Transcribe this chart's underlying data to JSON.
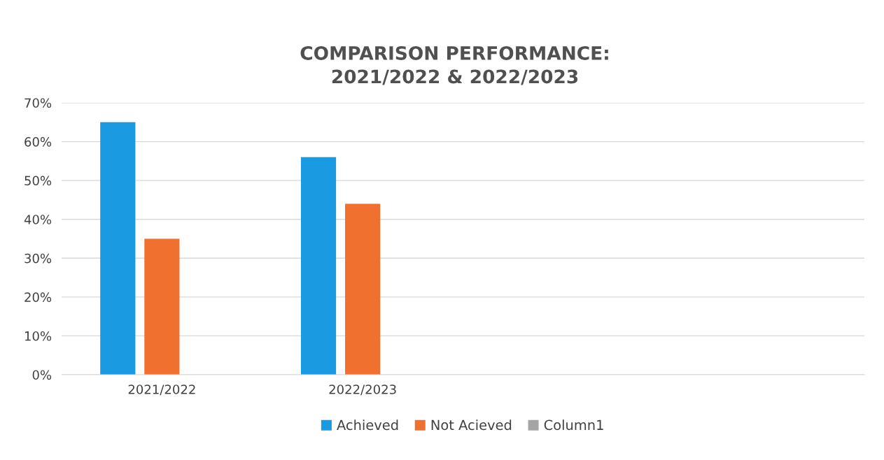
{
  "chart_data": {
    "type": "bar",
    "title": "COMPARISON PERFORMANCE:\n2021/2022 & 2022/2023",
    "categories": [
      "2021/2022",
      "2022/2023",
      null,
      null
    ],
    "series": [
      {
        "name": "Achieved",
        "color": "#1a9ae0",
        "values": [
          65,
          56,
          null,
          null
        ]
      },
      {
        "name": "Not Acieved",
        "color": "#f07030",
        "values": [
          35,
          44,
          null,
          null
        ]
      },
      {
        "name": "Column1",
        "color": "#a5a5a5",
        "values": [
          null,
          null,
          null,
          null
        ]
      }
    ],
    "ylim": [
      0,
      70
    ],
    "yticks": [
      {
        "value": 0,
        "label": "0%"
      },
      {
        "value": 10,
        "label": "10%"
      },
      {
        "value": 20,
        "label": "20%"
      },
      {
        "value": 30,
        "label": "30%"
      },
      {
        "value": 40,
        "label": "40%"
      },
      {
        "value": 50,
        "label": "50%"
      },
      {
        "value": 60,
        "label": "60%"
      },
      {
        "value": 70,
        "label": "70%"
      }
    ],
    "grid": "y",
    "legend": "bottom"
  }
}
